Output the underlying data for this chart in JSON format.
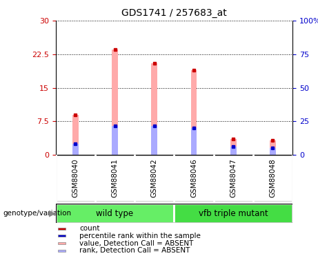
{
  "title": "GDS1741 / 257683_at",
  "samples": [
    "GSM88040",
    "GSM88041",
    "GSM88042",
    "GSM88046",
    "GSM88047",
    "GSM88048"
  ],
  "groups": [
    {
      "name": "wild type",
      "indices": [
        0,
        1,
        2
      ],
      "color": "#66ee66"
    },
    {
      "name": "vfb triple mutant",
      "indices": [
        3,
        4,
        5
      ],
      "color": "#44dd44"
    }
  ],
  "pink_bars": [
    9.0,
    23.5,
    20.5,
    19.0,
    3.5,
    3.2
  ],
  "blue_bars": [
    2.5,
    6.5,
    6.5,
    6.0,
    1.8,
    1.5
  ],
  "ylim_left": [
    0,
    30
  ],
  "ylim_right": [
    0,
    100
  ],
  "yticks_left": [
    0,
    7.5,
    15,
    22.5,
    30
  ],
  "yticks_right": [
    0,
    25,
    50,
    75,
    100
  ],
  "ytick_labels_left": [
    "0",
    "7.5",
    "15",
    "22.5",
    "30"
  ],
  "ytick_labels_right": [
    "0",
    "25",
    "50",
    "75",
    "100%"
  ],
  "left_axis_color": "#cc0000",
  "right_axis_color": "#0000cc",
  "bar_width": 0.15,
  "pink_color": "#ffaaaa",
  "blue_color": "#aaaaff",
  "red_color": "#cc0000",
  "blue_marker_color": "#0000cc",
  "legend_items": [
    {
      "label": "count",
      "color": "#cc0000"
    },
    {
      "label": "percentile rank within the sample",
      "color": "#0000cc"
    },
    {
      "label": "value, Detection Call = ABSENT",
      "color": "#ffaaaa"
    },
    {
      "label": "rank, Detection Call = ABSENT",
      "color": "#aaaaff"
    }
  ],
  "group_label": "genotype/variation",
  "background_color": "#ffffff",
  "sample_box_color": "#cccccc"
}
